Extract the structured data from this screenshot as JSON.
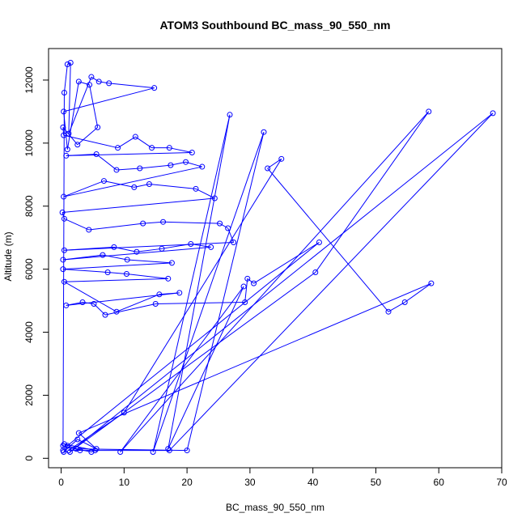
{
  "chart_data": {
    "type": "line",
    "title": "ATOM3 Southbound BC_mass_90_550_nm",
    "xlabel": "BC_mass_90_550_nm",
    "ylabel": "Altitude (m)",
    "xlim": [
      -2,
      70
    ],
    "ylim": [
      -300,
      13000
    ],
    "xticks": [
      0,
      10,
      20,
      30,
      40,
      50,
      60,
      70
    ],
    "yticks": [
      0,
      2000,
      4000,
      6000,
      8000,
      10000,
      12000
    ],
    "series_color": "#0000ff",
    "series": [
      {
        "points": [
          [
            0.3,
            250
          ],
          [
            0.5,
            11600
          ],
          [
            1.0,
            12500
          ],
          [
            1.5,
            12550
          ],
          [
            1.2,
            10300
          ],
          [
            4.8,
            12100
          ],
          [
            6.0,
            11950
          ],
          [
            7.6,
            11900
          ],
          [
            14.8,
            11750
          ],
          [
            0.4,
            11000
          ],
          [
            1.0,
            9800
          ],
          [
            2.8,
            11950
          ],
          [
            4.5,
            11850
          ],
          [
            5.8,
            10500
          ],
          [
            2.6,
            9950
          ],
          [
            0.3,
            10500
          ],
          [
            0.4,
            10250
          ],
          [
            9.0,
            9850
          ],
          [
            11.8,
            10200
          ],
          [
            14.4,
            9850
          ],
          [
            17.2,
            9850
          ],
          [
            20.8,
            9700
          ],
          [
            0.8,
            9600
          ],
          [
            5.6,
            9650
          ],
          [
            8.8,
            9150
          ],
          [
            12.5,
            9200
          ],
          [
            17.4,
            9300
          ],
          [
            19.8,
            9400
          ],
          [
            22.4,
            9250
          ],
          [
            0.4,
            8300
          ],
          [
            6.8,
            8800
          ],
          [
            11.6,
            8600
          ],
          [
            14.0,
            8700
          ],
          [
            21.4,
            8550
          ],
          [
            24.4,
            8250
          ],
          [
            0.2,
            7800
          ],
          [
            0.5,
            7600
          ],
          [
            4.4,
            7250
          ],
          [
            13.0,
            7450
          ],
          [
            16.2,
            7500
          ],
          [
            25.2,
            7450
          ],
          [
            26.5,
            7300
          ],
          [
            27.4,
            6850
          ],
          [
            0.5,
            6600
          ],
          [
            8.4,
            6700
          ],
          [
            12.0,
            6550
          ],
          [
            16.0,
            6650
          ],
          [
            20.6,
            6800
          ],
          [
            23.8,
            6700
          ],
          [
            0.3,
            6300
          ],
          [
            6.6,
            6450
          ],
          [
            10.5,
            6300
          ],
          [
            17.6,
            6200
          ],
          [
            0.3,
            6000
          ],
          [
            7.4,
            5900
          ],
          [
            10.4,
            5850
          ],
          [
            17.0,
            5700
          ],
          [
            0.5,
            5600
          ],
          [
            8.8,
            4650
          ],
          [
            15.6,
            5200
          ],
          [
            18.8,
            5250
          ],
          [
            0.8,
            4850
          ],
          [
            3.4,
            4950
          ],
          [
            5.2,
            4900
          ],
          [
            7.0,
            4550
          ],
          [
            15.0,
            4900
          ],
          [
            29.2,
            4950
          ],
          [
            29.6,
            5700
          ],
          [
            30.6,
            5550
          ],
          [
            41.0,
            6850
          ],
          [
            1.0,
            400
          ],
          [
            0.4,
            200
          ],
          [
            2.6,
            600
          ],
          [
            5.6,
            300
          ],
          [
            2.8,
            800
          ],
          [
            58.8,
            5550
          ],
          [
            54.6,
            4950
          ],
          [
            52.0,
            4650
          ],
          [
            32.8,
            9200
          ],
          [
            35.0,
            9500
          ],
          [
            10.0,
            1450
          ],
          [
            1.2,
            250
          ],
          [
            17.2,
            250
          ],
          [
            68.6,
            10950
          ],
          [
            1.4,
            200
          ],
          [
            40.4,
            5900
          ],
          [
            58.4,
            11000
          ],
          [
            9.4,
            200
          ],
          [
            29.0,
            5450
          ],
          [
            17.0,
            300
          ],
          [
            26.8,
            10900
          ],
          [
            14.6,
            200
          ],
          [
            32.2,
            10350
          ],
          [
            20.0,
            250
          ],
          [
            2.4,
            300
          ],
          [
            4.8,
            200
          ],
          [
            5.4,
            250
          ],
          [
            0.5,
            450
          ],
          [
            3.0,
            250
          ],
          [
            0.3,
            400
          ]
        ]
      }
    ]
  }
}
